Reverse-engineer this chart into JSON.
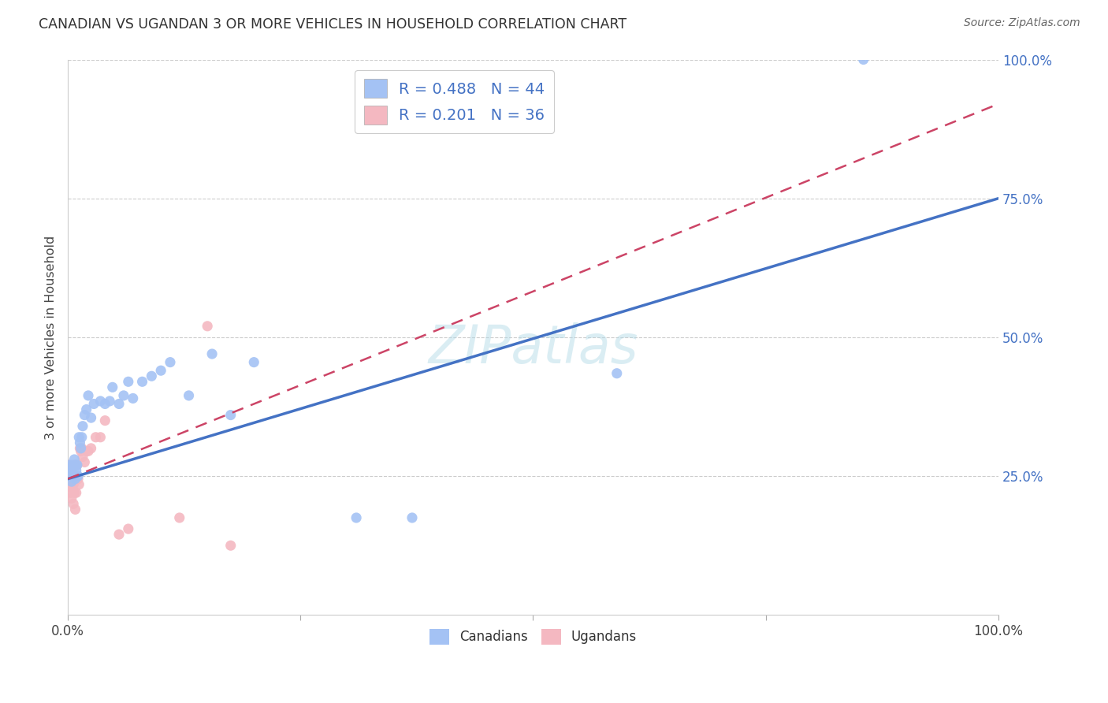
{
  "title": "CANADIAN VS UGANDAN 3 OR MORE VEHICLES IN HOUSEHOLD CORRELATION CHART",
  "source": "Source: ZipAtlas.com",
  "ylabel": "3 or more Vehicles in Household",
  "watermark": "ZIPatlas",
  "canadians_R": 0.488,
  "canadians_N": 44,
  "ugandans_R": 0.201,
  "ugandans_N": 36,
  "xlim": [
    0,
    1
  ],
  "ylim": [
    0,
    1
  ],
  "ytick_right_labels": [
    "25.0%",
    "50.0%",
    "75.0%",
    "100.0%"
  ],
  "ytick_right_values": [
    0.25,
    0.5,
    0.75,
    1.0
  ],
  "canadian_color": "#a4c2f4",
  "ugandan_color": "#f4b8c1",
  "canadian_line_color": "#4472c4",
  "ugandan_line_color": "#cc4466",
  "background_color": "#ffffff",
  "grid_color": "#cccccc",
  "canadians_x": [
    0.001,
    0.002,
    0.003,
    0.003,
    0.004,
    0.005,
    0.005,
    0.006,
    0.007,
    0.008,
    0.008,
    0.009,
    0.01,
    0.011,
    0.012,
    0.013,
    0.014,
    0.015,
    0.016,
    0.018,
    0.02,
    0.022,
    0.025,
    0.028,
    0.035,
    0.04,
    0.045,
    0.048,
    0.055,
    0.06,
    0.065,
    0.07,
    0.08,
    0.09,
    0.1,
    0.11,
    0.13,
    0.155,
    0.175,
    0.2,
    0.31,
    0.37,
    0.59,
    0.855
  ],
  "canadians_y": [
    0.27,
    0.265,
    0.26,
    0.25,
    0.24,
    0.27,
    0.26,
    0.25,
    0.28,
    0.27,
    0.245,
    0.26,
    0.27,
    0.25,
    0.32,
    0.31,
    0.3,
    0.32,
    0.34,
    0.36,
    0.37,
    0.395,
    0.355,
    0.38,
    0.385,
    0.38,
    0.385,
    0.41,
    0.38,
    0.395,
    0.42,
    0.39,
    0.42,
    0.43,
    0.44,
    0.455,
    0.395,
    0.47,
    0.36,
    0.455,
    0.175,
    0.175,
    0.435,
    1.0
  ],
  "ugandans_x": [
    0.001,
    0.001,
    0.002,
    0.002,
    0.003,
    0.003,
    0.004,
    0.004,
    0.005,
    0.005,
    0.006,
    0.006,
    0.007,
    0.007,
    0.008,
    0.008,
    0.009,
    0.01,
    0.011,
    0.012,
    0.013,
    0.014,
    0.015,
    0.016,
    0.018,
    0.02,
    0.022,
    0.025,
    0.03,
    0.035,
    0.04,
    0.055,
    0.065,
    0.12,
    0.15,
    0.175
  ],
  "ugandans_y": [
    0.27,
    0.25,
    0.26,
    0.23,
    0.25,
    0.22,
    0.24,
    0.21,
    0.265,
    0.235,
    0.2,
    0.235,
    0.25,
    0.22,
    0.27,
    0.19,
    0.22,
    0.27,
    0.245,
    0.235,
    0.3,
    0.295,
    0.3,
    0.285,
    0.275,
    0.295,
    0.295,
    0.3,
    0.32,
    0.32,
    0.35,
    0.145,
    0.155,
    0.175,
    0.52,
    0.125
  ],
  "canadian_line_x0": 0.0,
  "canadian_line_y0": 0.245,
  "canadian_line_x1": 1.0,
  "canadian_line_y1": 0.75,
  "ugandan_line_x0": 0.0,
  "ugandan_line_y0": 0.245,
  "ugandan_line_x1": 1.0,
  "ugandan_line_y1": 0.92
}
